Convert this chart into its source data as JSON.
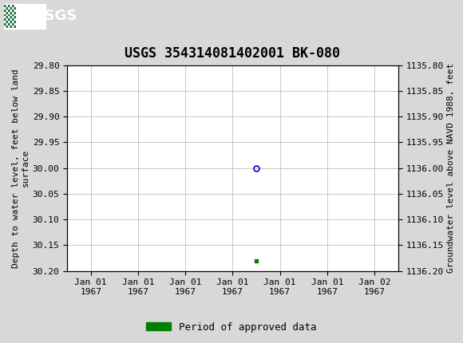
{
  "title": "USGS 354314081402001 BK-080",
  "ylabel_left": "Depth to water level, feet below land\nsurface",
  "ylabel_right": "Groundwater level above NAVD 1988, feet",
  "ylim_left": [
    29.8,
    30.2
  ],
  "ylim_right": [
    1136.2,
    1135.8
  ],
  "yticks_left": [
    29.8,
    29.85,
    29.9,
    29.95,
    30.0,
    30.05,
    30.1,
    30.15,
    30.2
  ],
  "yticks_right": [
    1136.2,
    1136.15,
    1136.1,
    1136.05,
    1136.0,
    1135.95,
    1135.9,
    1135.85,
    1135.8
  ],
  "data_point_x": 3.5,
  "data_point_y": 30.0,
  "green_bar_x": 3.5,
  "green_bar_y": 30.18,
  "header_color": "#1a6b3c",
  "header_text_color": "#ffffff",
  "grid_color": "#c8c8c8",
  "dot_color": "#0000cc",
  "green_color": "#008000",
  "background_color": "#d8d8d8",
  "plot_bg_color": "#ffffff",
  "legend_label": "Period of approved data",
  "title_fontsize": 12,
  "axis_fontsize": 8,
  "tick_fontsize": 8,
  "x_tick_labels": [
    "Jan 01\n1967",
    "Jan 01\n1967",
    "Jan 01\n1967",
    "Jan 01\n1967",
    "Jan 01\n1967",
    "Jan 01\n1967",
    "Jan 02\n1967"
  ],
  "x_tick_positions": [
    0,
    1,
    2,
    3,
    4,
    5,
    6
  ],
  "xlim": [
    -0.5,
    6.5
  ]
}
